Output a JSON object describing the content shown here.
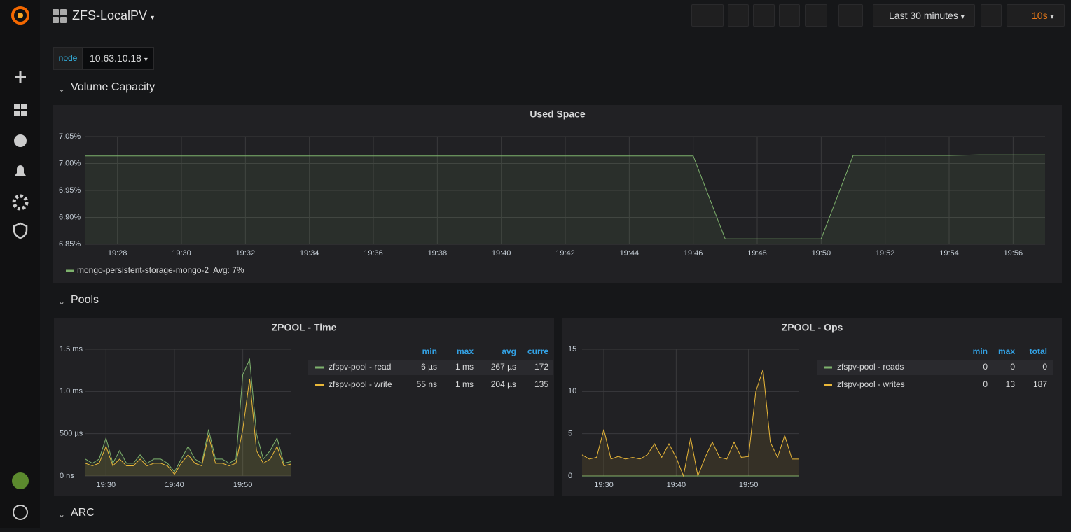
{
  "header": {
    "title": "ZFS-LocalPV",
    "time_range": "Last 30 minutes",
    "refresh": "10s"
  },
  "variables": [
    {
      "label": "node",
      "value": "10.63.10.18"
    }
  ],
  "rows": [
    "Volume Capacity",
    "Pools",
    "ARC"
  ],
  "chart_data": [
    {
      "type": "line",
      "title": "Used Space",
      "legend": "bottom",
      "x": [
        "19:27",
        "19:28",
        "19:29",
        "19:30",
        "19:31",
        "19:32",
        "19:33",
        "19:34",
        "19:35",
        "19:36",
        "19:37",
        "19:38",
        "19:39",
        "19:40",
        "19:41",
        "19:42",
        "19:43",
        "19:44",
        "19:45",
        "19:46",
        "19:47",
        "19:48",
        "19:49",
        "19:50",
        "19:51",
        "19:52",
        "19:53",
        "19:54",
        "19:55",
        "19:56",
        "19:57"
      ],
      "series": [
        {
          "name": "mongo-persistent-storage-mongo-2",
          "color": "#7eb26d",
          "legend_avg": "Avg: 7%",
          "values": [
            7.014,
            7.014,
            7.014,
            7.014,
            7.014,
            7.014,
            7.014,
            7.014,
            7.014,
            7.014,
            7.014,
            7.014,
            7.014,
            7.014,
            7.014,
            7.014,
            7.014,
            7.014,
            7.014,
            7.014,
            6.86,
            6.86,
            6.86,
            6.86,
            7.015,
            7.015,
            7.015,
            7.015,
            7.016,
            7.016,
            7.016
          ]
        }
      ],
      "xlim": [
        "19:27",
        "19:57"
      ],
      "xticks": [
        "19:28",
        "19:30",
        "19:32",
        "19:34",
        "19:36",
        "19:38",
        "19:40",
        "19:42",
        "19:44",
        "19:46",
        "19:48",
        "19:50",
        "19:52",
        "19:54",
        "19:56"
      ],
      "ylim": [
        6.85,
        7.05
      ],
      "yticks": [
        {
          "value": 6.85,
          "label": "6.85%"
        },
        {
          "value": 6.9,
          "label": "6.90%"
        },
        {
          "value": 6.95,
          "label": "6.95%"
        },
        {
          "value": 7,
          "label": "7.00%"
        },
        {
          "value": 7.05,
          "label": "7.05%"
        }
      ],
      "grid": true
    },
    {
      "type": "line",
      "title": "ZPOOL - Time",
      "legend": "right",
      "legend_columns": [
        "min",
        "max",
        "avg",
        "curre"
      ],
      "x": [
        "19:27",
        "19:28",
        "19:29",
        "19:30",
        "19:31",
        "19:32",
        "19:33",
        "19:34",
        "19:35",
        "19:36",
        "19:37",
        "19:38",
        "19:39",
        "19:40",
        "19:41",
        "19:42",
        "19:43",
        "19:44",
        "19:45",
        "19:46",
        "19:47",
        "19:48",
        "19:49",
        "19:50",
        "19:51",
        "19:52",
        "19:53",
        "19:54",
        "19:55",
        "19:56",
        "19:57"
      ],
      "series": [
        {
          "name": "zfspv-pool - read",
          "color": "#7eb26d",
          "stats": [
            "6 µs",
            "1 ms",
            "267 µs",
            "172"
          ],
          "values": [
            0.2,
            0.15,
            0.2,
            0.45,
            0.15,
            0.3,
            0.15,
            0.15,
            0.25,
            0.15,
            0.2,
            0.2,
            0.15,
            0.05,
            0.2,
            0.35,
            0.2,
            0.15,
            0.55,
            0.2,
            0.2,
            0.15,
            0.2,
            1.2,
            1.38,
            0.5,
            0.2,
            0.3,
            0.45,
            0.15,
            0.17
          ]
        },
        {
          "name": "zfspv-pool - write",
          "color": "#eab839",
          "stats": [
            "55 ns",
            "1 ms",
            "204 µs",
            "135"
          ],
          "values": [
            0.15,
            0.12,
            0.15,
            0.35,
            0.12,
            0.2,
            0.12,
            0.12,
            0.2,
            0.12,
            0.15,
            0.15,
            0.12,
            0.02,
            0.15,
            0.25,
            0.15,
            0.12,
            0.48,
            0.15,
            0.15,
            0.12,
            0.15,
            0.55,
            1.15,
            0.3,
            0.15,
            0.2,
            0.35,
            0.12,
            0.14
          ]
        }
      ],
      "xlim": [
        "19:27",
        "19:57"
      ],
      "xticks": [
        "19:30",
        "19:40",
        "19:50"
      ],
      "ylim": [
        0,
        1.5
      ],
      "yticks": [
        {
          "value": 0,
          "label": "0 ns"
        },
        {
          "value": 0.5,
          "label": "500 µs"
        },
        {
          "value": 1,
          "label": "1.0 ms"
        },
        {
          "value": 1.5,
          "label": "1.5 ms"
        }
      ],
      "grid": true
    },
    {
      "type": "line",
      "title": "ZPOOL - Ops",
      "legend": "right",
      "legend_columns": [
        "min",
        "max",
        "total"
      ],
      "x": [
        "19:27",
        "19:28",
        "19:29",
        "19:30",
        "19:31",
        "19:32",
        "19:33",
        "19:34",
        "19:35",
        "19:36",
        "19:37",
        "19:38",
        "19:39",
        "19:40",
        "19:41",
        "19:42",
        "19:43",
        "19:44",
        "19:45",
        "19:46",
        "19:47",
        "19:48",
        "19:49",
        "19:50",
        "19:51",
        "19:52",
        "19:53",
        "19:54",
        "19:55",
        "19:56",
        "19:57"
      ],
      "series": [
        {
          "name": "zfspv-pool - reads",
          "color": "#7eb26d",
          "stats": [
            "0",
            "0",
            "0"
          ],
          "values": [
            0,
            0,
            0,
            0,
            0,
            0,
            0,
            0,
            0,
            0,
            0,
            0,
            0,
            0,
            0,
            0,
            0,
            0,
            0,
            0,
            0,
            0,
            0,
            0,
            0,
            0,
            0,
            0,
            0,
            0,
            0
          ]
        },
        {
          "name": "zfspv-pool - writes",
          "color": "#eab839",
          "stats": [
            "0",
            "13",
            "187"
          ],
          "values": [
            2.5,
            2,
            2.2,
            5.5,
            2,
            2.3,
            2,
            2.2,
            2,
            2.5,
            3.8,
            2.2,
            3.8,
            2.2,
            0,
            4.5,
            0,
            2.2,
            4,
            2.2,
            2,
            4,
            2.2,
            2.3,
            10,
            12.6,
            4,
            2.2,
            4.8,
            2,
            2
          ]
        }
      ],
      "xlim": [
        "19:27",
        "19:57"
      ],
      "xticks": [
        "19:30",
        "19:40",
        "19:50"
      ],
      "ylim": [
        0,
        15
      ],
      "yticks": [
        0,
        5,
        10,
        15
      ],
      "grid": true
    }
  ]
}
